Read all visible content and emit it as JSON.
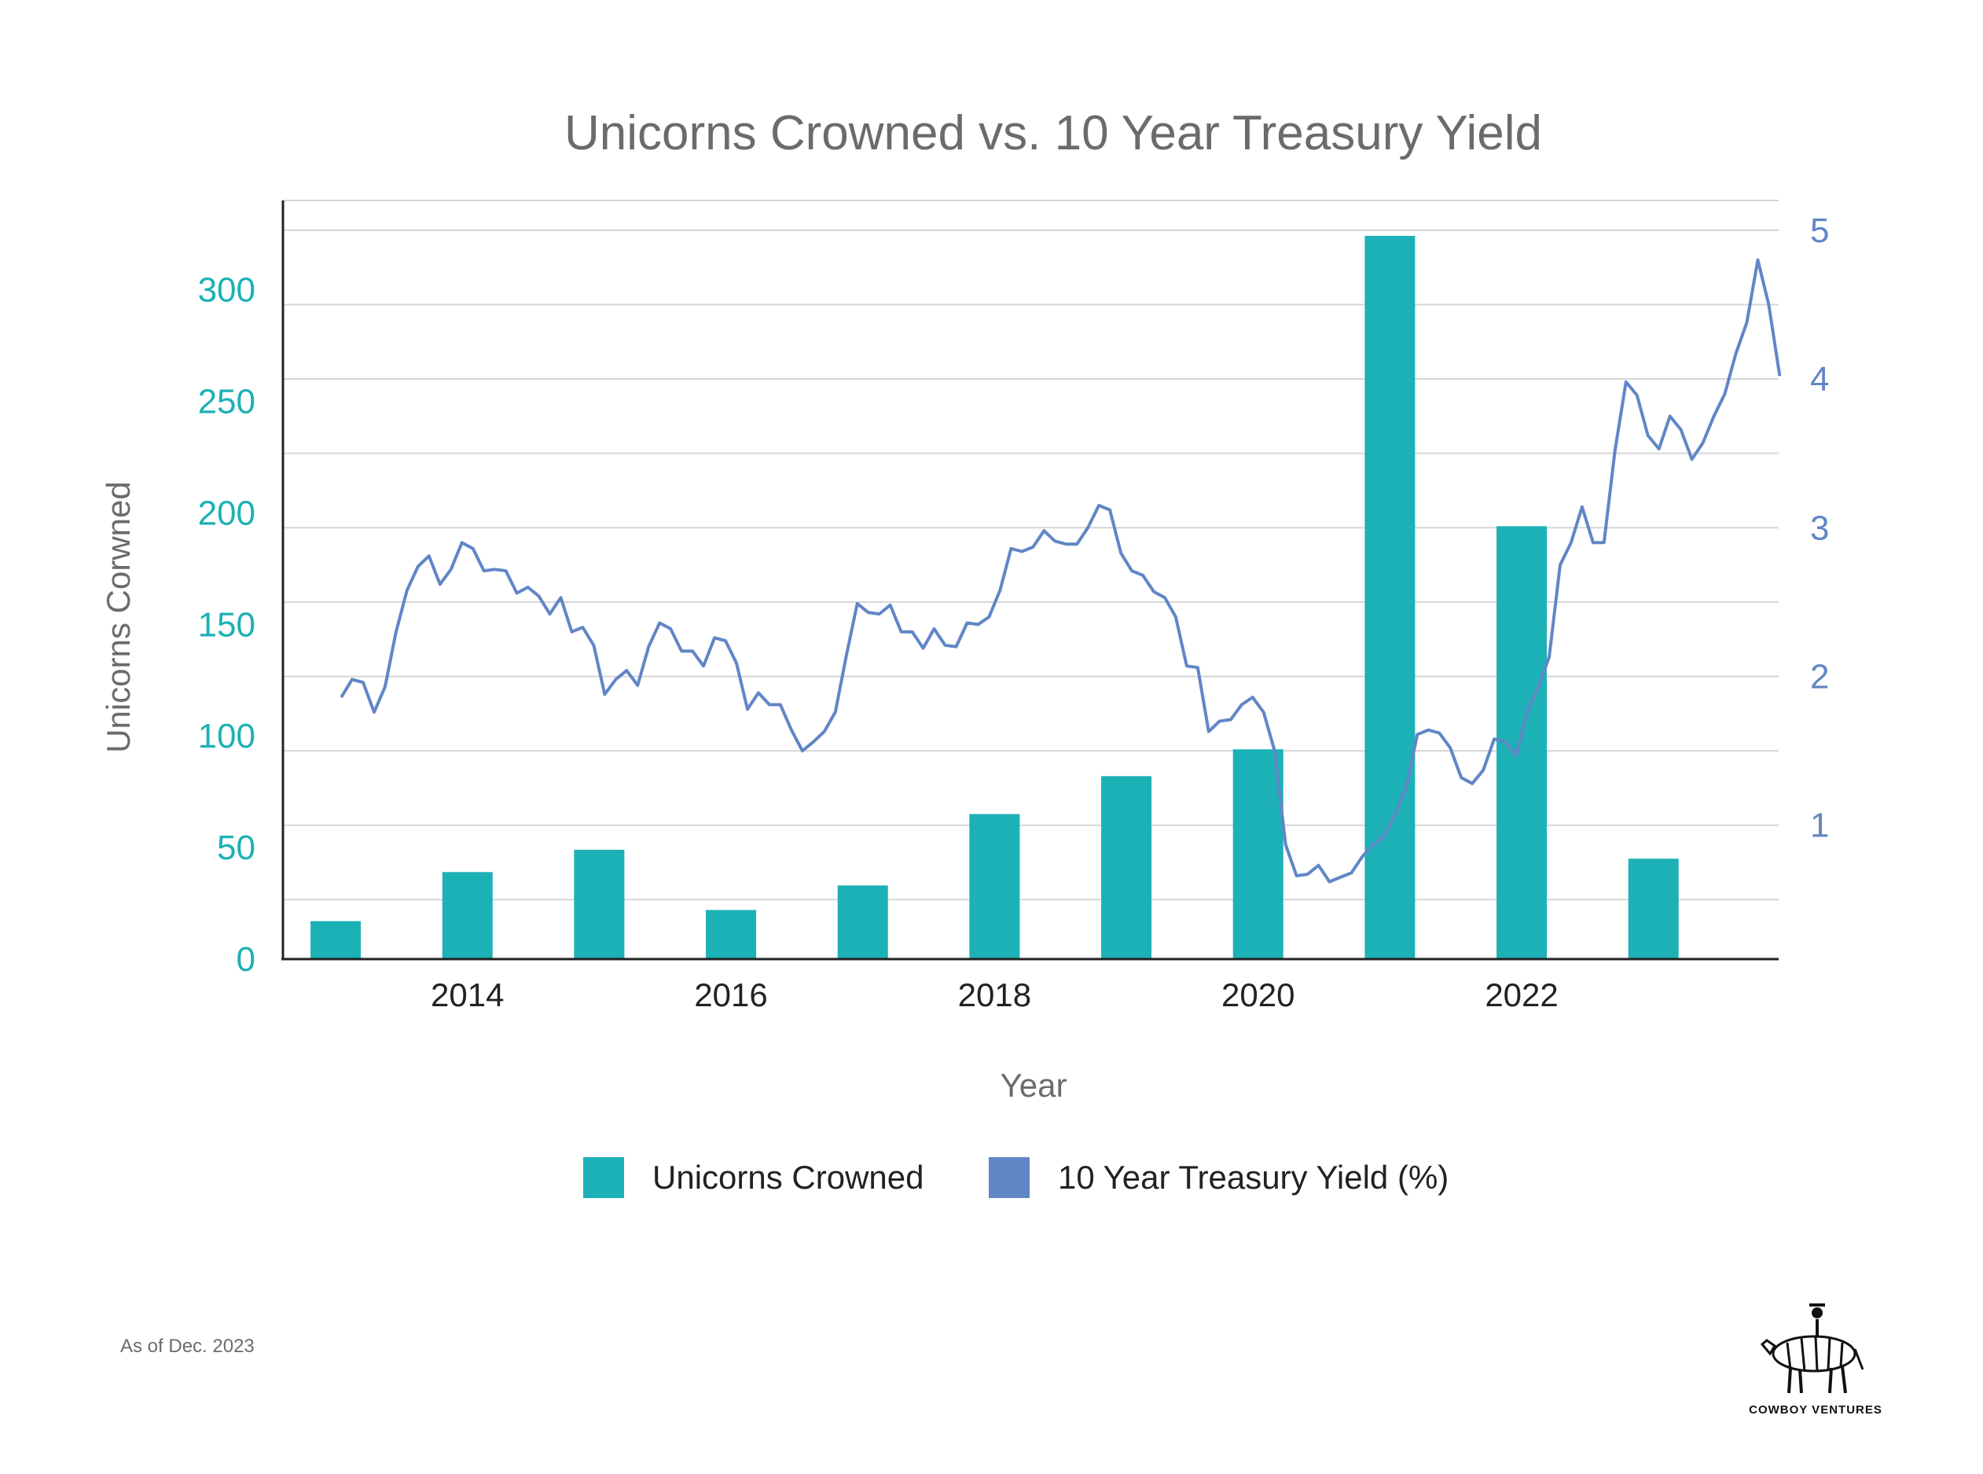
{
  "colors": {
    "bar": "#1bb1b6",
    "line": "#6186c6",
    "grid": "#d6d6d6",
    "axis": "#222222"
  },
  "footnote": "As of Dec. 2023",
  "brand": {
    "name": "COWBOY VENTURES",
    "logo": "zebra-with-rider-icon"
  },
  "chart_data": {
    "type": "bar+line",
    "title": "Unicorns Crowned vs. 10 Year Treasury Yield",
    "xlabel": "Year",
    "ylabel": "Unicorns Corwned",
    "x_ticks": [
      2014,
      2016,
      2018,
      2020,
      2022
    ],
    "xlim": [
      2012.6,
      2023.95
    ],
    "ylim": [
      0,
      340
    ],
    "y_ticks": [
      0,
      50,
      100,
      150,
      200,
      250,
      300
    ],
    "y2lim": [
      0.1,
      5.2
    ],
    "y2_ticks": [
      1,
      2,
      3,
      4,
      5
    ],
    "grid": "horizontal",
    "legend_position": "bottom",
    "series": [
      {
        "name": "Unicorns Crowned",
        "type": "bar",
        "axis": "left",
        "x": [
          2013,
          2014,
          2015,
          2016,
          2017,
          2018,
          2019,
          2020,
          2021,
          2022,
          2023
        ],
        "values": [
          17,
          39,
          49,
          22,
          33,
          65,
          82,
          94,
          357,
          194,
          45
        ]
      },
      {
        "name": "10 Year Treasury Yield (%)",
        "type": "line",
        "axis": "right",
        "points": [
          [
            "2013-01",
            1.86
          ],
          [
            "2013-02",
            1.98
          ],
          [
            "2013-03",
            1.96
          ],
          [
            "2013-04",
            1.76
          ],
          [
            "2013-05",
            1.93
          ],
          [
            "2013-06",
            2.3
          ],
          [
            "2013-07",
            2.58
          ],
          [
            "2013-08",
            2.74
          ],
          [
            "2013-09",
            2.81
          ],
          [
            "2013-10",
            2.62
          ],
          [
            "2013-11",
            2.72
          ],
          [
            "2013-12",
            2.9
          ],
          [
            "2014-01",
            2.86
          ],
          [
            "2014-02",
            2.71
          ],
          [
            "2014-03",
            2.72
          ],
          [
            "2014-04",
            2.71
          ],
          [
            "2014-05",
            2.56
          ],
          [
            "2014-06",
            2.6
          ],
          [
            "2014-07",
            2.54
          ],
          [
            "2014-08",
            2.42
          ],
          [
            "2014-09",
            2.53
          ],
          [
            "2014-10",
            2.3
          ],
          [
            "2014-11",
            2.33
          ],
          [
            "2014-12",
            2.21
          ],
          [
            "2015-01",
            1.88
          ],
          [
            "2015-02",
            1.98
          ],
          [
            "2015-03",
            2.04
          ],
          [
            "2015-04",
            1.94
          ],
          [
            "2015-05",
            2.2
          ],
          [
            "2015-06",
            2.36
          ],
          [
            "2015-07",
            2.32
          ],
          [
            "2015-08",
            2.17
          ],
          [
            "2015-09",
            2.17
          ],
          [
            "2015-10",
            2.07
          ],
          [
            "2015-11",
            2.26
          ],
          [
            "2015-12",
            2.24
          ],
          [
            "2016-01",
            2.09
          ],
          [
            "2016-02",
            1.78
          ],
          [
            "2016-03",
            1.89
          ],
          [
            "2016-04",
            1.81
          ],
          [
            "2016-05",
            1.81
          ],
          [
            "2016-06",
            1.64
          ],
          [
            "2016-07",
            1.5
          ],
          [
            "2016-08",
            1.56
          ],
          [
            "2016-09",
            1.63
          ],
          [
            "2016-10",
            1.76
          ],
          [
            "2016-11",
            2.14
          ],
          [
            "2016-12",
            2.49
          ],
          [
            "2017-01",
            2.43
          ],
          [
            "2017-02",
            2.42
          ],
          [
            "2017-03",
            2.48
          ],
          [
            "2017-04",
            2.3
          ],
          [
            "2017-05",
            2.3
          ],
          [
            "2017-06",
            2.19
          ],
          [
            "2017-07",
            2.32
          ],
          [
            "2017-08",
            2.21
          ],
          [
            "2017-09",
            2.2
          ],
          [
            "2017-10",
            2.36
          ],
          [
            "2017-11",
            2.35
          ],
          [
            "2017-12",
            2.4
          ],
          [
            "2018-01",
            2.58
          ],
          [
            "2018-02",
            2.86
          ],
          [
            "2018-03",
            2.84
          ],
          [
            "2018-04",
            2.87
          ],
          [
            "2018-05",
            2.98
          ],
          [
            "2018-06",
            2.91
          ],
          [
            "2018-07",
            2.89
          ],
          [
            "2018-08",
            2.89
          ],
          [
            "2018-09",
            3.0
          ],
          [
            "2018-10",
            3.15
          ],
          [
            "2018-11",
            3.12
          ],
          [
            "2018-12",
            2.83
          ],
          [
            "2019-01",
            2.71
          ],
          [
            "2019-02",
            2.68
          ],
          [
            "2019-03",
            2.57
          ],
          [
            "2019-04",
            2.53
          ],
          [
            "2019-05",
            2.4
          ],
          [
            "2019-06",
            2.07
          ],
          [
            "2019-07",
            2.06
          ],
          [
            "2019-08",
            1.63
          ],
          [
            "2019-09",
            1.7
          ],
          [
            "2019-10",
            1.71
          ],
          [
            "2019-11",
            1.81
          ],
          [
            "2019-12",
            1.86
          ],
          [
            "2020-01",
            1.76
          ],
          [
            "2020-02",
            1.5
          ],
          [
            "2020-03",
            0.87
          ],
          [
            "2020-04",
            0.66
          ],
          [
            "2020-05",
            0.67
          ],
          [
            "2020-06",
            0.73
          ],
          [
            "2020-07",
            0.62
          ],
          [
            "2020-08",
            0.65
          ],
          [
            "2020-09",
            0.68
          ],
          [
            "2020-10",
            0.79
          ],
          [
            "2020-11",
            0.87
          ],
          [
            "2020-12",
            0.93
          ],
          [
            "2021-01",
            1.08
          ],
          [
            "2021-02",
            1.26
          ],
          [
            "2021-03",
            1.61
          ],
          [
            "2021-04",
            1.64
          ],
          [
            "2021-05",
            1.62
          ],
          [
            "2021-06",
            1.52
          ],
          [
            "2021-07",
            1.32
          ],
          [
            "2021-08",
            1.28
          ],
          [
            "2021-09",
            1.37
          ],
          [
            "2021-10",
            1.58
          ],
          [
            "2021-11",
            1.56
          ],
          [
            "2021-12",
            1.47
          ],
          [
            "2022-01",
            1.76
          ],
          [
            "2022-02",
            1.93
          ],
          [
            "2022-03",
            2.13
          ],
          [
            "2022-04",
            2.75
          ],
          [
            "2022-05",
            2.9
          ],
          [
            "2022-06",
            3.14
          ],
          [
            "2022-07",
            2.9
          ],
          [
            "2022-08",
            2.9
          ],
          [
            "2022-09",
            3.52
          ],
          [
            "2022-10",
            3.98
          ],
          [
            "2022-11",
            3.89
          ],
          [
            "2022-12",
            3.62
          ],
          [
            "2023-01",
            3.53
          ],
          [
            "2023-02",
            3.75
          ],
          [
            "2023-03",
            3.66
          ],
          [
            "2023-04",
            3.46
          ],
          [
            "2023-05",
            3.57
          ],
          [
            "2023-06",
            3.75
          ],
          [
            "2023-07",
            3.9
          ],
          [
            "2023-08",
            4.17
          ],
          [
            "2023-09",
            4.38
          ],
          [
            "2023-10",
            4.8
          ],
          [
            "2023-11",
            4.5
          ],
          [
            "2023-12",
            4.02
          ]
        ]
      }
    ]
  }
}
